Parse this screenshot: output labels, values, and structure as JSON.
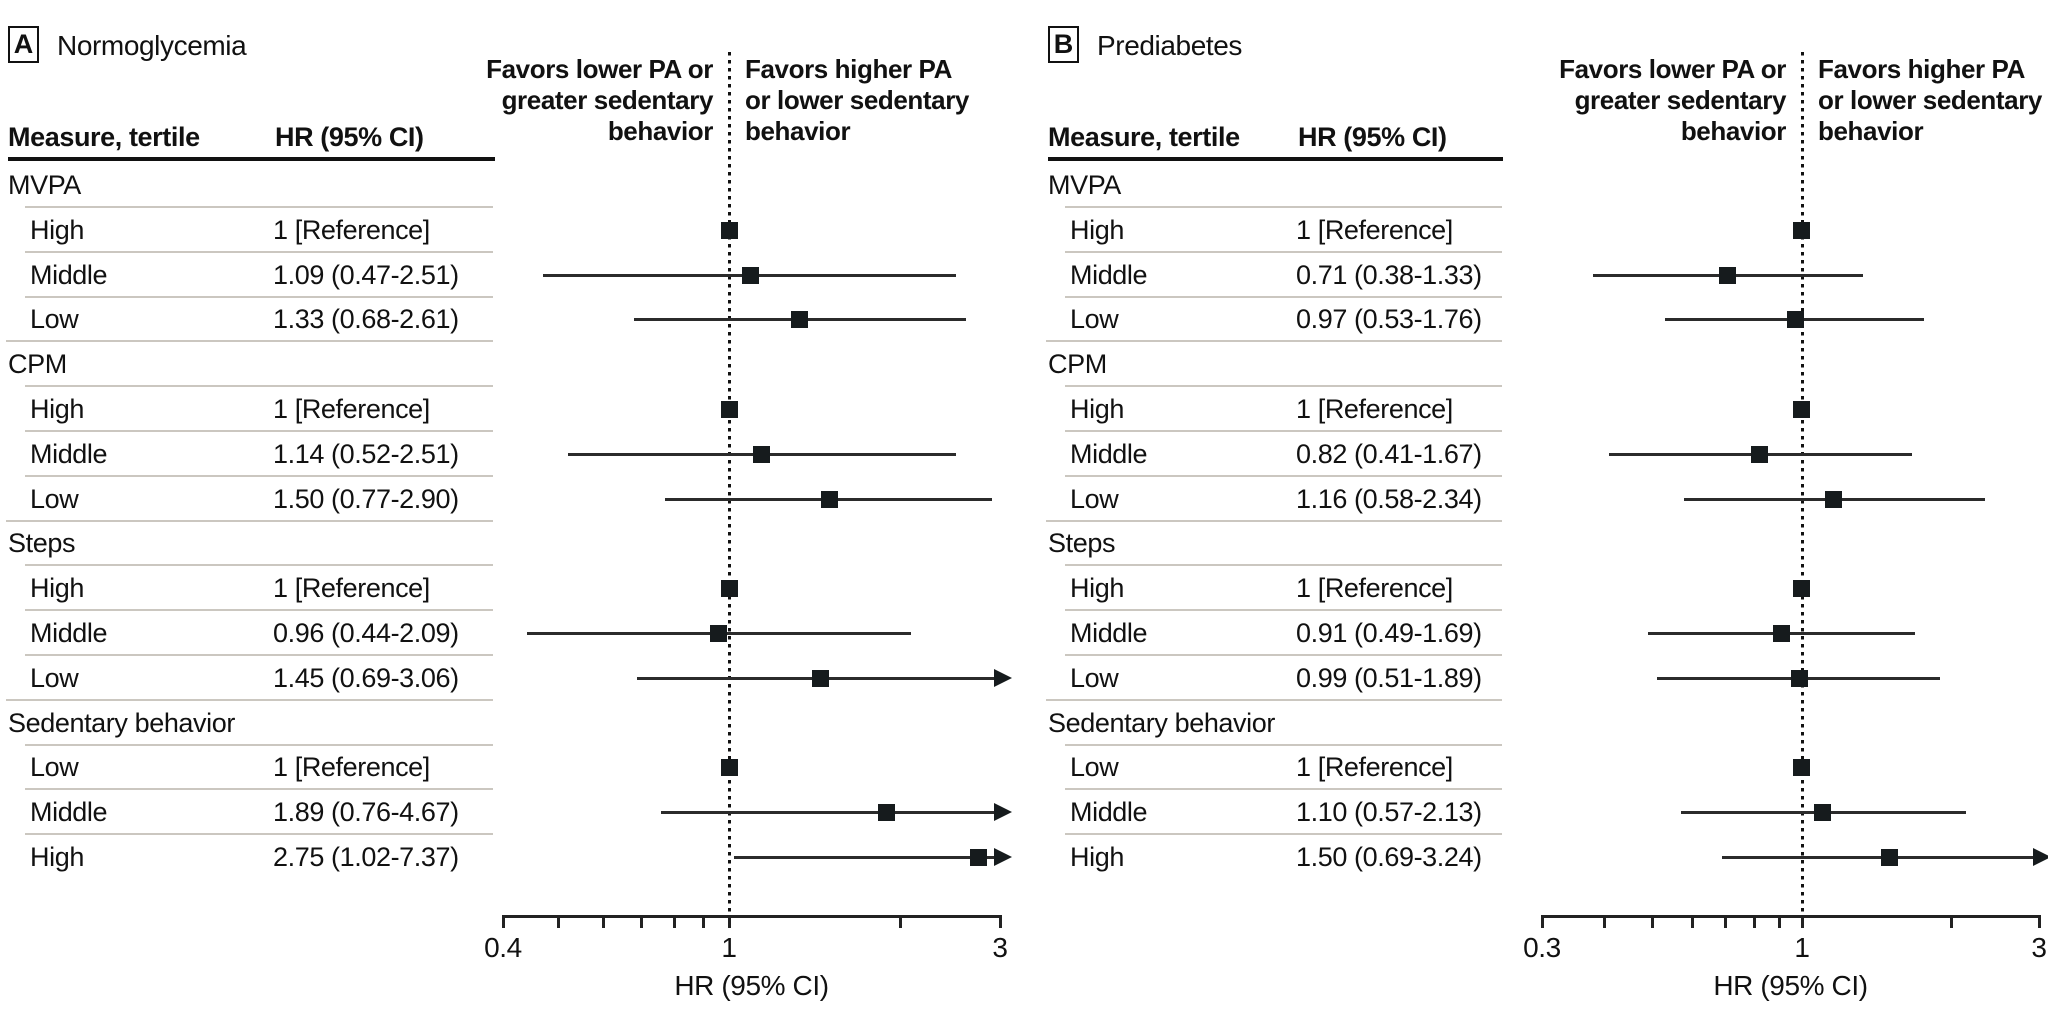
{
  "chart_data": [
    {
      "type": "forest",
      "panel": "A",
      "title": "Normoglycemia",
      "columns": {
        "measure": "Measure, tertile",
        "hr": "HR (95% CI)"
      },
      "favors_left": "Favors lower PA or\ngreater sedentary\nbehavior",
      "favors_right": "Favors higher PA\nor lower sedentary\nbehavior",
      "axis": {
        "scale": "log",
        "min": 0.4,
        "max": 3,
        "ref": 1,
        "ticks": [
          0.4,
          0.5,
          0.6,
          0.7,
          0.8,
          0.9,
          1,
          2,
          3
        ],
        "labeled_ticks": [
          {
            "v": 0.4,
            "label": "0.4"
          },
          {
            "v": 1,
            "label": "1"
          },
          {
            "v": 3,
            "label": "3"
          }
        ],
        "label": "HR (95% CI)"
      },
      "groups": [
        {
          "label": "MVPA",
          "items": [
            {
              "tertile": "High",
              "text": "1 [Reference]",
              "hr": 1,
              "ref": true
            },
            {
              "tertile": "Middle",
              "text": "1.09 (0.47-2.51)",
              "hr": 1.09,
              "lo": 0.47,
              "hi": 2.51
            },
            {
              "tertile": "Low",
              "text": "1.33 (0.68-2.61)",
              "hr": 1.33,
              "lo": 0.68,
              "hi": 2.61
            }
          ]
        },
        {
          "label": "CPM",
          "items": [
            {
              "tertile": "High",
              "text": "1 [Reference]",
              "hr": 1,
              "ref": true
            },
            {
              "tertile": "Middle",
              "text": "1.14 (0.52-2.51)",
              "hr": 1.14,
              "lo": 0.52,
              "hi": 2.51
            },
            {
              "tertile": "Low",
              "text": "1.50 (0.77-2.90)",
              "hr": 1.5,
              "lo": 0.77,
              "hi": 2.9
            }
          ]
        },
        {
          "label": "Steps",
          "items": [
            {
              "tertile": "High",
              "text": "1 [Reference]",
              "hr": 1,
              "ref": true
            },
            {
              "tertile": "Middle",
              "text": "0.96 (0.44-2.09)",
              "hr": 0.96,
              "lo": 0.44,
              "hi": 2.09
            },
            {
              "tertile": "Low",
              "text": "1.45 (0.69-3.06)",
              "hr": 1.45,
              "lo": 0.69,
              "hi": 3.06
            }
          ]
        },
        {
          "label": "Sedentary behavior",
          "items": [
            {
              "tertile": "Low",
              "text": "1 [Reference]",
              "hr": 1,
              "ref": true
            },
            {
              "tertile": "Middle",
              "text": "1.89 (0.76-4.67)",
              "hr": 1.89,
              "lo": 0.76,
              "hi": 4.67
            },
            {
              "tertile": "High",
              "text": "2.75 (1.02-7.37)",
              "hr": 2.75,
              "lo": 1.02,
              "hi": 7.37
            }
          ]
        }
      ]
    },
    {
      "type": "forest",
      "panel": "B",
      "title": "Prediabetes",
      "columns": {
        "measure": "Measure, tertile",
        "hr": "HR (95% CI)"
      },
      "favors_left": "Favors lower PA or\ngreater sedentary\nbehavior",
      "favors_right": "Favors higher PA\nor lower sedentary\nbehavior",
      "axis": {
        "scale": "log",
        "min": 0.3,
        "max": 3,
        "ref": 1,
        "ticks": [
          0.3,
          0.4,
          0.5,
          0.6,
          0.7,
          0.8,
          0.9,
          1,
          2,
          3
        ],
        "labeled_ticks": [
          {
            "v": 0.3,
            "label": "0.3"
          },
          {
            "v": 1,
            "label": "1"
          },
          {
            "v": 3,
            "label": "3"
          }
        ],
        "label": "HR (95% CI)"
      },
      "groups": [
        {
          "label": "MVPA",
          "items": [
            {
              "tertile": "High",
              "text": "1 [Reference]",
              "hr": 1,
              "ref": true
            },
            {
              "tertile": "Middle",
              "text": "0.71 (0.38-1.33)",
              "hr": 0.71,
              "lo": 0.38,
              "hi": 1.33
            },
            {
              "tertile": "Low",
              "text": "0.97 (0.53-1.76)",
              "hr": 0.97,
              "lo": 0.53,
              "hi": 1.76
            }
          ]
        },
        {
          "label": "CPM",
          "items": [
            {
              "tertile": "High",
              "text": "1 [Reference]",
              "hr": 1,
              "ref": true
            },
            {
              "tertile": "Middle",
              "text": "0.82 (0.41-1.67)",
              "hr": 0.82,
              "lo": 0.41,
              "hi": 1.67
            },
            {
              "tertile": "Low",
              "text": "1.16 (0.58-2.34)",
              "hr": 1.16,
              "lo": 0.58,
              "hi": 2.34
            }
          ]
        },
        {
          "label": "Steps",
          "items": [
            {
              "tertile": "High",
              "text": "1 [Reference]",
              "hr": 1,
              "ref": true
            },
            {
              "tertile": "Middle",
              "text": "0.91 (0.49-1.69)",
              "hr": 0.91,
              "lo": 0.49,
              "hi": 1.69
            },
            {
              "tertile": "Low",
              "text": "0.99 (0.51-1.89)",
              "hr": 0.99,
              "lo": 0.51,
              "hi": 1.89
            }
          ]
        },
        {
          "label": "Sedentary behavior",
          "items": [
            {
              "tertile": "Low",
              "text": "1 [Reference]",
              "hr": 1,
              "ref": true
            },
            {
              "tertile": "Middle",
              "text": "1.10 (0.57-2.13)",
              "hr": 1.1,
              "lo": 0.57,
              "hi": 2.13
            },
            {
              "tertile": "High",
              "text": "1.50 (0.69-3.24)",
              "hr": 1.5,
              "lo": 0.69,
              "hi": 3.24
            }
          ]
        }
      ]
    }
  ]
}
